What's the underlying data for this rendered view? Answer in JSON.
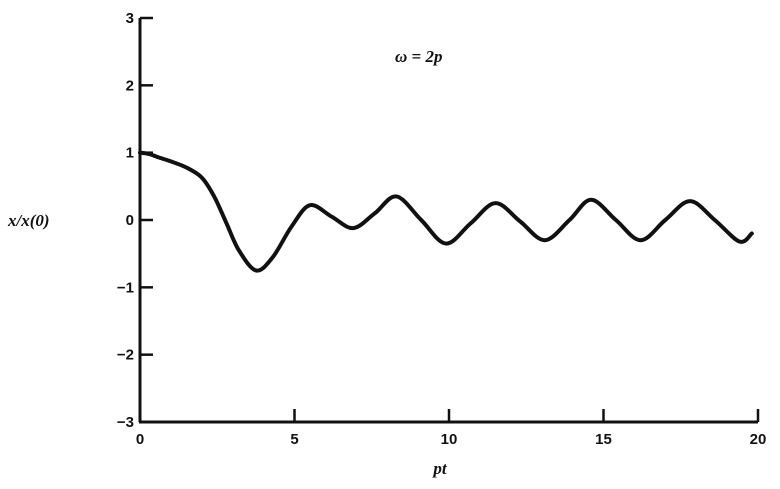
{
  "chart_data": {
    "type": "line",
    "title": "",
    "annotation": "ω = 2p",
    "xlabel": "pt",
    "ylabel": "x/x(0)",
    "xlim": [
      0,
      20
    ],
    "ylim": [
      -3,
      3
    ],
    "grid": false,
    "xticks": [
      0,
      5,
      10,
      15,
      20
    ],
    "yticks": [
      3,
      2,
      1,
      0,
      -1,
      -2,
      -3
    ],
    "line_color": "#111111",
    "series": [
      {
        "x": [
          0,
          0.3,
          0.6,
          1.0,
          1.5,
          2.0,
          2.4,
          2.8,
          3.2,
          3.76,
          4.3,
          4.9,
          5.5,
          6.2,
          6.9,
          7.6,
          8.3,
          9.1,
          9.9,
          10.7,
          11.5,
          12.3,
          13.1,
          13.9,
          14.6,
          15.4,
          16.2,
          17.0,
          17.8,
          18.6,
          19.4,
          19.8
        ],
        "y": [
          1.0,
          0.98,
          0.93,
          0.87,
          0.78,
          0.63,
          0.35,
          -0.05,
          -0.45,
          -0.75,
          -0.55,
          -0.1,
          0.22,
          0.05,
          -0.12,
          0.1,
          0.35,
          0.0,
          -0.35,
          -0.05,
          0.25,
          -0.02,
          -0.3,
          0.0,
          0.3,
          0.0,
          -0.3,
          0.0,
          0.28,
          0.0,
          -0.32,
          -0.2
        ]
      }
    ]
  }
}
